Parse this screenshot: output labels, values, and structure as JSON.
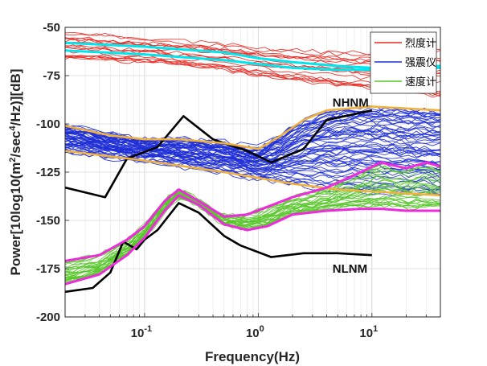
{
  "chart_data": {
    "type": "line",
    "xlabel": "Frequency(Hz)",
    "ylabel_parts": [
      "Power[10log10(m",
      "2",
      "/sec",
      "4",
      "/Hz)][dB]"
    ],
    "xscale": "log",
    "xlim": [
      0.02,
      40
    ],
    "ylim": [
      -200,
      -50
    ],
    "grid": true,
    "x_tick_labels": [
      {
        "base": "10",
        "exp": "-1",
        "value": 0.1
      },
      {
        "base": "10",
        "exp": "0",
        "value": 1
      },
      {
        "base": "10",
        "exp": "1",
        "value": 10
      }
    ],
    "y_ticks": [
      -50,
      -75,
      -100,
      -125,
      -150,
      -175,
      -200
    ],
    "legend": {
      "position": "top-right",
      "entries": [
        {
          "label": "烈度计",
          "color": "#e8271f"
        },
        {
          "label": "强震仪",
          "color": "#1f2fd6"
        },
        {
          "label": "速度计",
          "color": "#59c72c"
        }
      ]
    },
    "annotations": [
      {
        "text": "NHNM",
        "x": 4.5,
        "y": -91
      },
      {
        "text": "NLNM",
        "x": 4.5,
        "y": -172
      }
    ],
    "series": [
      {
        "name": "NHNM",
        "color": "#000000",
        "x": [
          0.02,
          0.045,
          0.07,
          0.13,
          0.22,
          0.4,
          0.8,
          1.3,
          2.5,
          4,
          10
        ],
        "y": [
          -133,
          -138,
          -118,
          -112,
          -96,
          -108,
          -114,
          -120,
          -113,
          -98,
          -93
        ]
      },
      {
        "name": "NLNM",
        "color": "#000000",
        "x": [
          0.02,
          0.035,
          0.05,
          0.065,
          0.085,
          0.1,
          0.13,
          0.2,
          0.3,
          0.5,
          0.7,
          1.3,
          2.5,
          5,
          10
        ],
        "y": [
          -187,
          -185,
          -177,
          -161,
          -165,
          -160,
          -155,
          -141,
          -146,
          -158,
          -163,
          -169,
          -167,
          -167,
          -168
        ]
      },
      {
        "name": "accel-upper-bound",
        "color": "#f0b13c",
        "x": [
          0.02,
          0.05,
          0.1,
          0.2,
          0.5,
          1,
          1.5,
          2.5,
          4,
          10,
          20,
          40
        ],
        "y": [
          -101,
          -106,
          -108,
          -108,
          -110,
          -113,
          -107,
          -98,
          -93,
          -91,
          -92,
          -93
        ]
      },
      {
        "name": "accel-lower-bound",
        "color": "#f0b13c",
        "x": [
          0.02,
          0.1,
          0.5,
          1,
          2,
          5,
          10,
          20,
          40
        ],
        "y": [
          -114,
          -119,
          -125,
          -128,
          -131,
          -134,
          -135,
          -136,
          -137
        ]
      },
      {
        "name": "intensity-band-upper",
        "color": "#00e5ee",
        "x": [
          0.02,
          0.1,
          0.5,
          1,
          2,
          5,
          10,
          20,
          40
        ],
        "y": [
          -58,
          -60,
          -63,
          -66,
          -68,
          -70,
          -71,
          -71,
          -70
        ]
      },
      {
        "name": "intensity-band-lower",
        "color": "#00e5ee",
        "x": [
          0.02,
          0.1,
          0.5,
          1,
          2,
          5,
          10,
          20,
          40
        ],
        "y": [
          -62,
          -64,
          -67,
          -69,
          -71,
          -72,
          -72,
          -71,
          -71
        ]
      },
      {
        "name": "velocity-upper-bound",
        "color": "#ee2bdc",
        "x": [
          0.02,
          0.04,
          0.07,
          0.1,
          0.15,
          0.2,
          0.3,
          0.5,
          0.8,
          1.2,
          2,
          4,
          8,
          12,
          20,
          30,
          40
        ],
        "y": [
          -171,
          -168,
          -160,
          -153,
          -140,
          -134,
          -140,
          -148,
          -147,
          -143,
          -138,
          -133,
          -125,
          -120,
          -123,
          -120,
          -122
        ]
      },
      {
        "name": "velocity-lower-bound",
        "color": "#ee2bdc",
        "x": [
          0.02,
          0.04,
          0.07,
          0.1,
          0.15,
          0.2,
          0.3,
          0.5,
          0.8,
          1.2,
          2,
          4,
          8,
          12,
          20,
          30,
          40
        ],
        "y": [
          -183,
          -178,
          -168,
          -159,
          -145,
          -137,
          -142,
          -152,
          -155,
          -153,
          -147,
          -145,
          -144,
          -144,
          -145,
          -145,
          -145
        ]
      }
    ],
    "colors": {
      "intensity": "#e8271f",
      "accelerometer": "#1f2fd6",
      "velocimeter": "#59c72c"
    }
  }
}
